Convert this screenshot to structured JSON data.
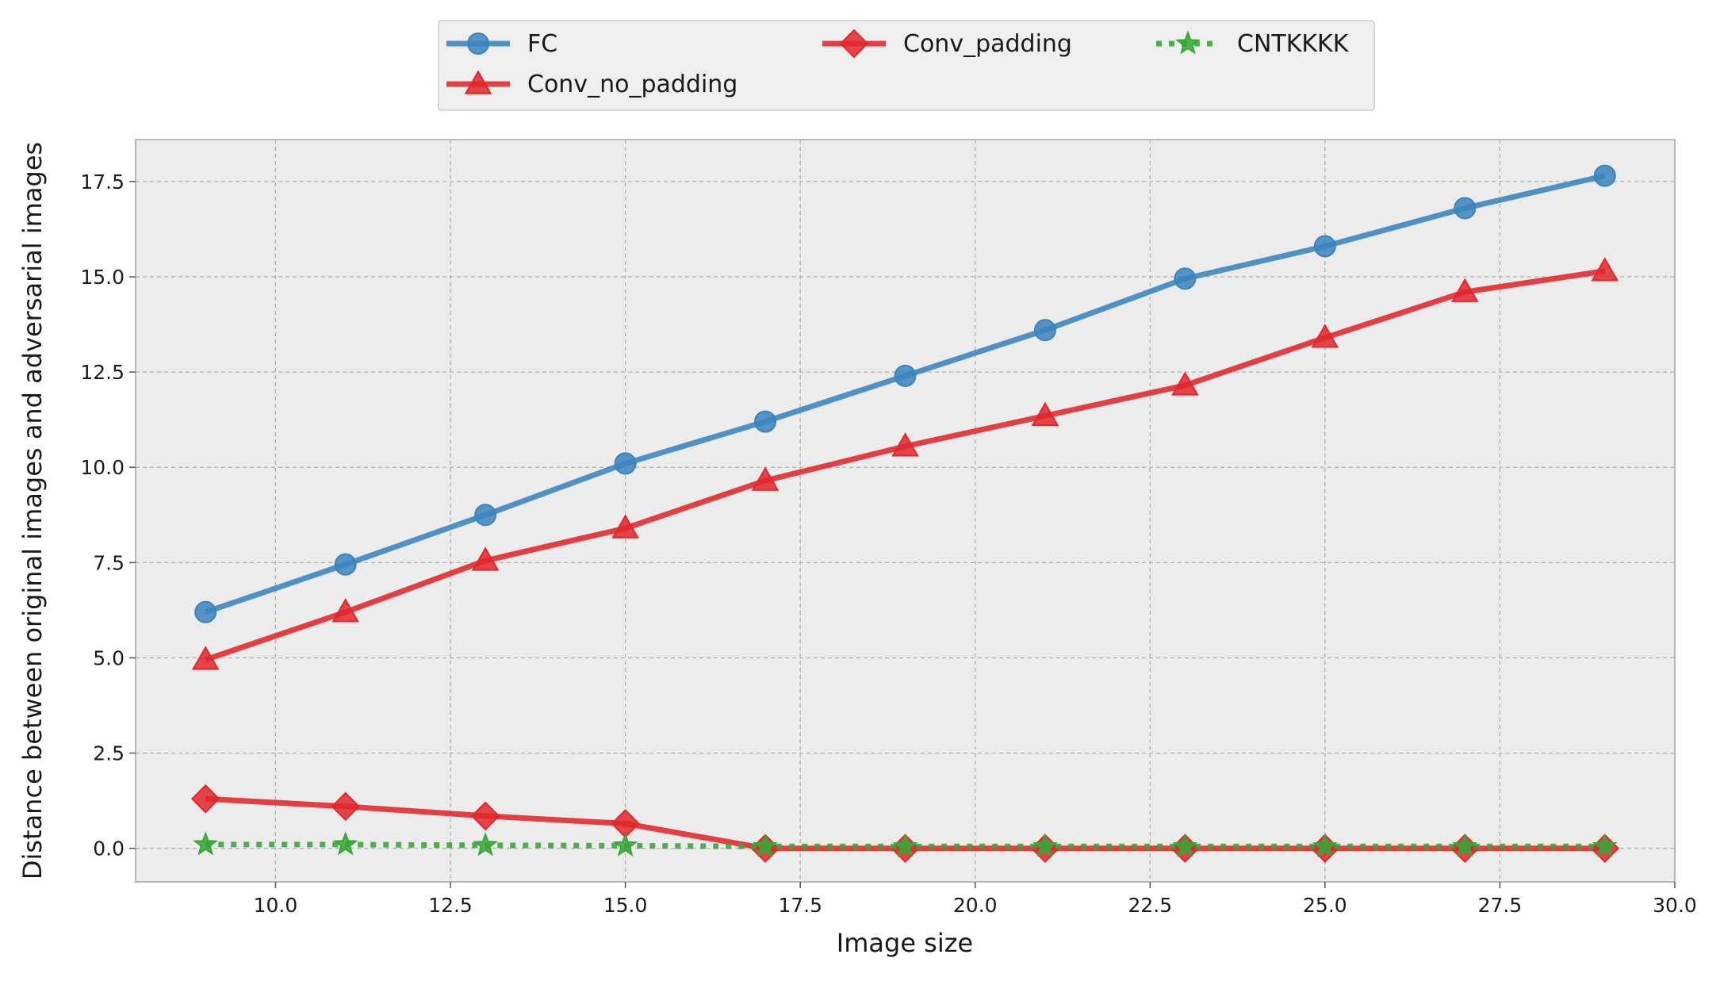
{
  "chart_data": {
    "type": "line",
    "title": "",
    "xlabel": "Image size",
    "ylabel": "Distance between original images and adversarial images",
    "xlim": [
      8,
      30
    ],
    "ylim": [
      -0.88,
      18.6
    ],
    "xticks": [
      10.0,
      12.5,
      15.0,
      17.5,
      20.0,
      22.5,
      25.0,
      27.5,
      30.0
    ],
    "xtick_labels": [
      "10.0",
      "12.5",
      "15.0",
      "17.5",
      "20.0",
      "22.5",
      "25.0",
      "27.5",
      "30.0"
    ],
    "yticks": [
      0.0,
      2.5,
      5.0,
      7.5,
      10.0,
      12.5,
      15.0,
      17.5
    ],
    "ytick_labels": [
      "0.0",
      "2.5",
      "5.0",
      "7.5",
      "10.0",
      "12.5",
      "15.0",
      "17.5"
    ],
    "grid": true,
    "legend_position": "top-center (above plot, 3 columns)",
    "background": "#ececec",
    "x": [
      9,
      11,
      13,
      15,
      17,
      19,
      21,
      23,
      25,
      27,
      29
    ],
    "series": [
      {
        "name": "FC",
        "color": "#3a84bd",
        "marker": "circle",
        "linestyle": "solid",
        "values": [
          6.2,
          7.45,
          8.75,
          10.1,
          11.2,
          12.4,
          13.6,
          14.95,
          15.8,
          16.8,
          17.65
        ]
      },
      {
        "name": "Conv_no_padding",
        "color": "#e0272b",
        "marker": "triangle",
        "linestyle": "solid",
        "values": [
          4.95,
          6.2,
          7.55,
          8.4,
          9.65,
          10.55,
          11.35,
          12.15,
          13.4,
          14.6,
          15.15
        ]
      },
      {
        "name": "Conv_padding",
        "color": "#e0272b",
        "marker": "diamond",
        "linestyle": "solid",
        "values": [
          1.3,
          1.1,
          0.85,
          0.65,
          0.0,
          0.0,
          0.0,
          0.0,
          0.0,
          0.0,
          0.0
        ]
      },
      {
        "name": "CNTKKKK",
        "color": "#36a635",
        "marker": "star",
        "linestyle": "dotted",
        "values": [
          0.1,
          0.1,
          0.08,
          0.07,
          0.05,
          0.05,
          0.05,
          0.05,
          0.05,
          0.05,
          0.05
        ]
      }
    ]
  }
}
